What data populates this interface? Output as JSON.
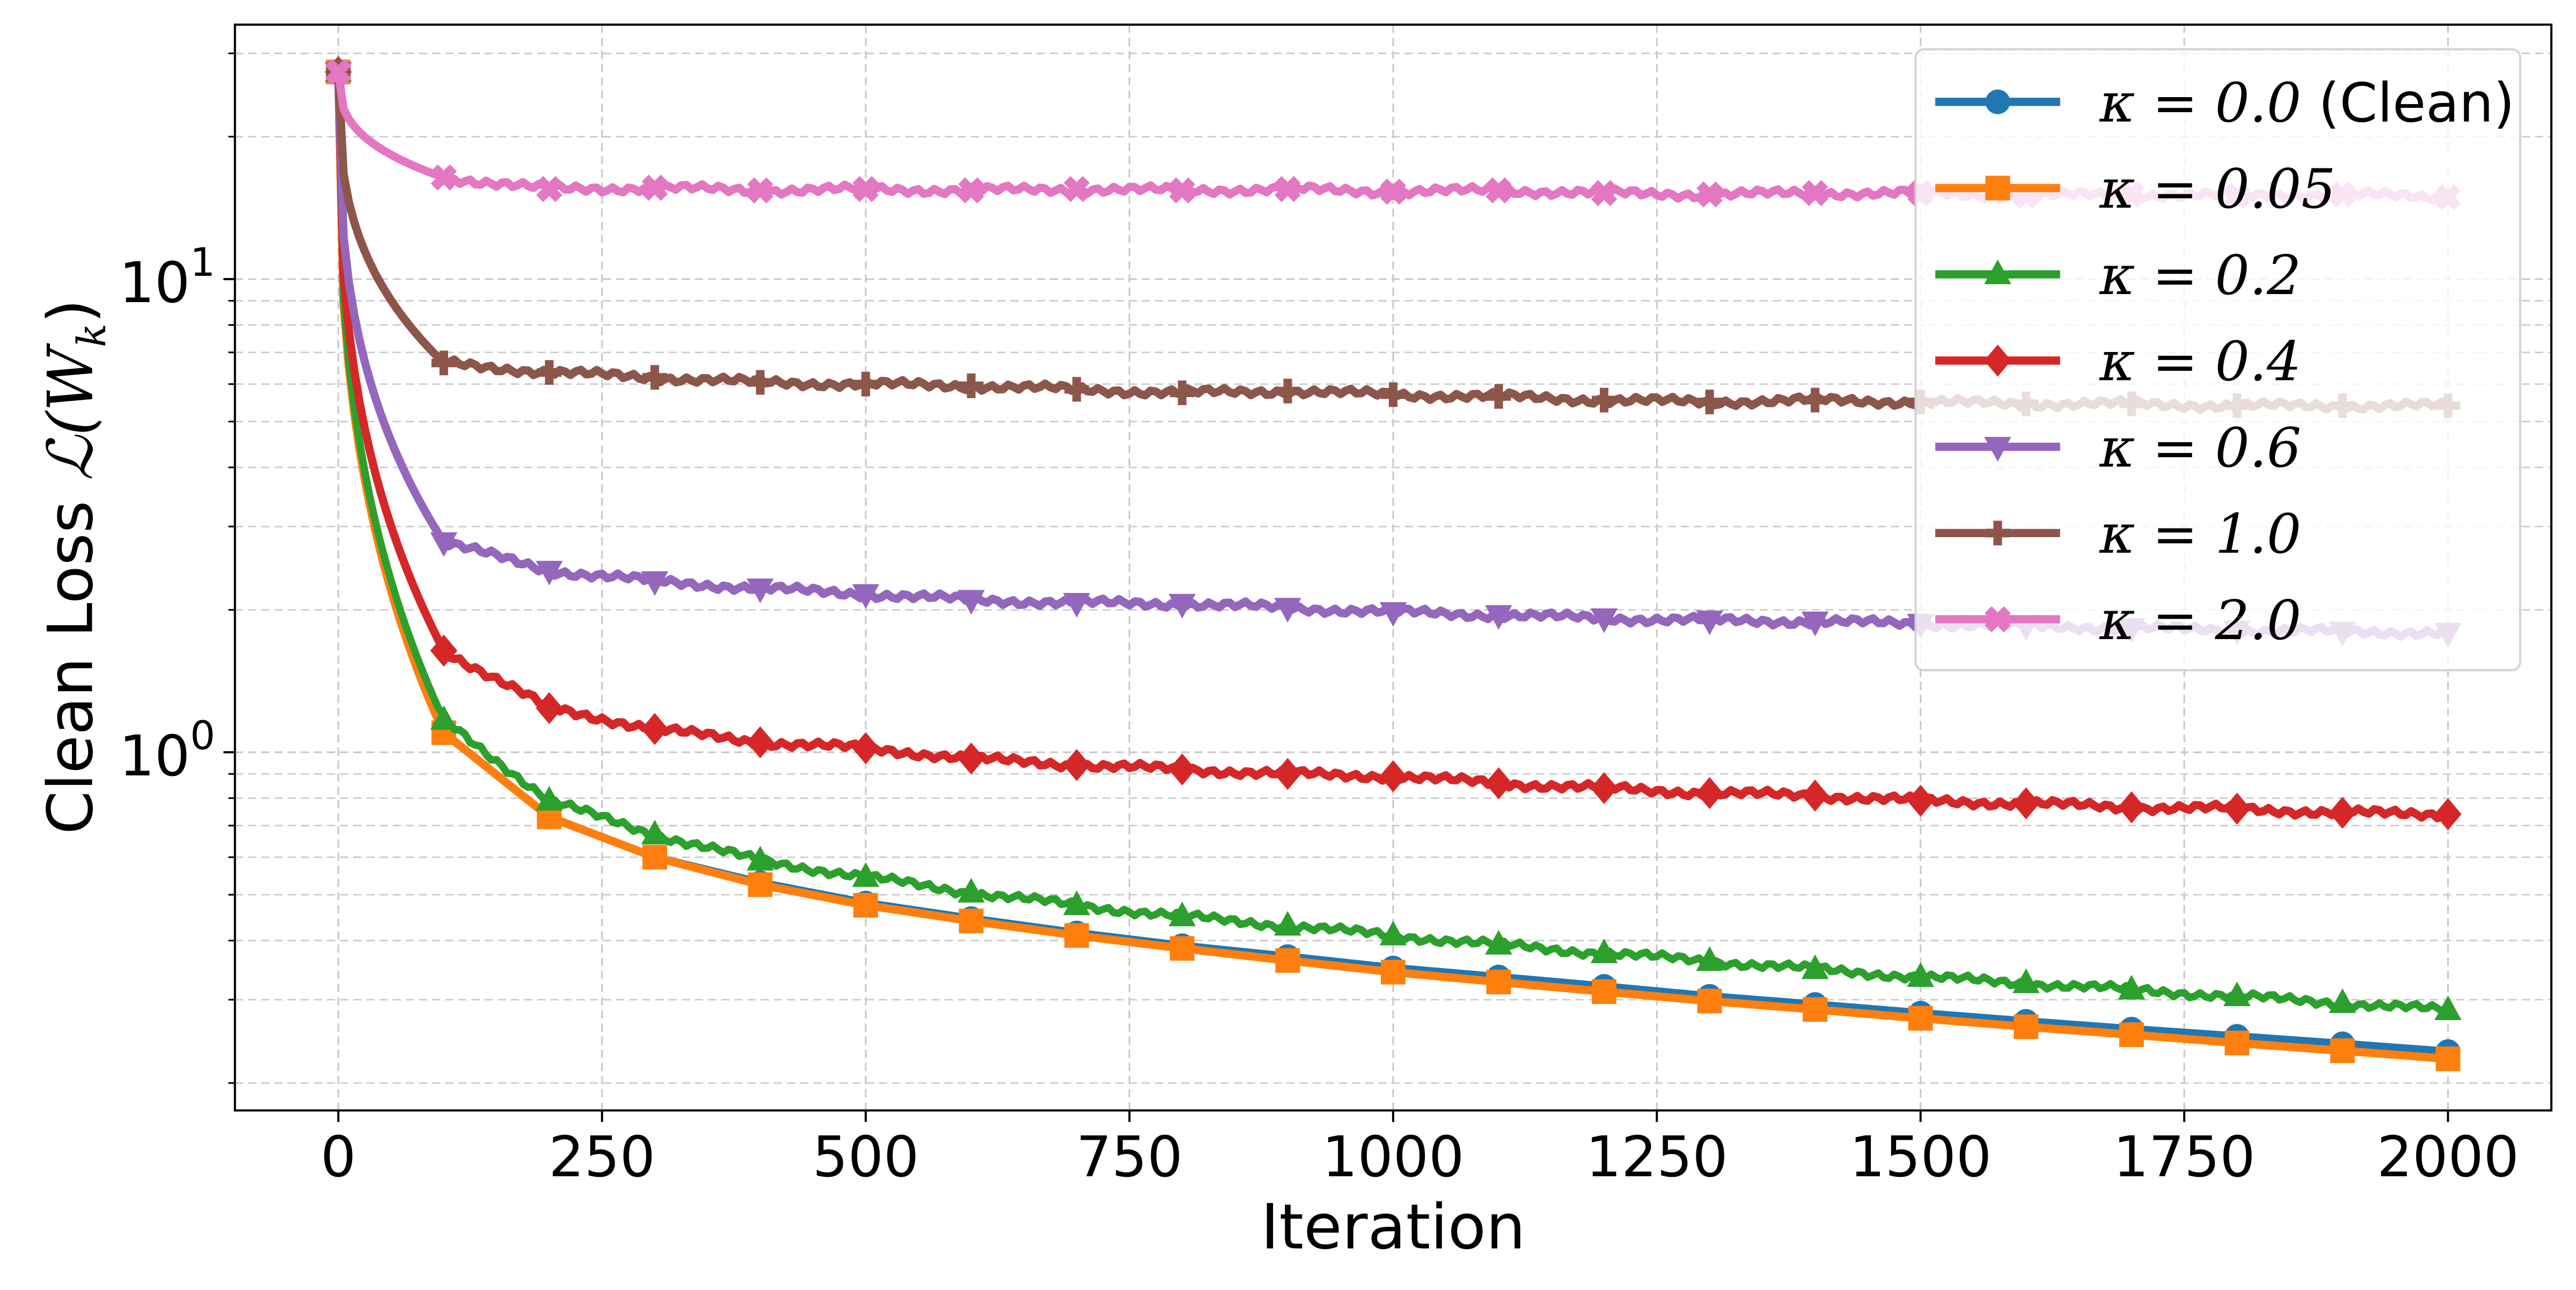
{
  "chart_data": {
    "type": "line",
    "title": "",
    "xlabel": "Iteration",
    "ylabel": "Clean Loss 𝓛(𝐖ₖ)",
    "ylabel_parts": {
      "prefix": "Clean Loss ",
      "symbol": "ℒ(W",
      "subscript": "k",
      "suffix": ")"
    },
    "yscale": "log",
    "xlim": [
      -98,
      2098
    ],
    "ylim": [
      0.175,
      34.5
    ],
    "xticks": [
      0,
      250,
      500,
      750,
      1000,
      1250,
      1500,
      1750,
      2000
    ],
    "xtick_labels": [
      "0",
      "250",
      "500",
      "750",
      "1000",
      "1250",
      "1500",
      "1750",
      "2000"
    ],
    "yticks_major": [
      1,
      10
    ],
    "ytick_labels": [
      {
        "base": "10",
        "exp": "0"
      },
      {
        "base": "10",
        "exp": "1"
      }
    ],
    "yticks_minor": [
      0.2,
      0.3,
      0.4,
      0.5,
      0.6,
      0.7,
      0.8,
      0.9,
      2,
      3,
      4,
      5,
      6,
      7,
      8,
      9,
      20,
      30
    ],
    "grid": true,
    "legend_position": "upper right",
    "x": [
      0,
      100,
      200,
      300,
      400,
      500,
      600,
      700,
      800,
      900,
      1000,
      1100,
      1200,
      1300,
      1400,
      1500,
      1600,
      1700,
      1800,
      1900,
      2000
    ],
    "series": [
      {
        "name": "κ = 0.0 (Clean)",
        "label_kappa": "κ = 0.0",
        "label_suffix": " (Clean)",
        "color": "#1f77b4",
        "marker": "circle",
        "values": [
          27.4,
          1.1,
          0.73,
          0.6,
          0.53,
          0.48,
          0.445,
          0.415,
          0.39,
          0.37,
          0.35,
          0.335,
          0.32,
          0.305,
          0.293,
          0.281,
          0.27,
          0.26,
          0.251,
          0.242,
          0.233
        ]
      },
      {
        "name": "κ = 0.05",
        "label_kappa": "κ = 0.05",
        "label_suffix": "",
        "color": "#ff7f0e",
        "marker": "square",
        "values": [
          27.4,
          1.1,
          0.73,
          0.6,
          0.525,
          0.475,
          0.44,
          0.41,
          0.385,
          0.363,
          0.343,
          0.327,
          0.312,
          0.298,
          0.286,
          0.274,
          0.263,
          0.253,
          0.243,
          0.234,
          0.225
        ]
      },
      {
        "name": "κ = 0.2",
        "label_kappa": "κ = 0.2",
        "label_suffix": "",
        "color": "#2ca02c",
        "marker": "triangle-up",
        "values": [
          27.4,
          1.17,
          0.79,
          0.67,
          0.59,
          0.545,
          0.505,
          0.475,
          0.45,
          0.43,
          0.41,
          0.392,
          0.376,
          0.362,
          0.348,
          0.335,
          0.325,
          0.315,
          0.305,
          0.295,
          0.285
        ]
      },
      {
        "name": "κ = 0.4",
        "label_kappa": "κ = 0.4",
        "label_suffix": "",
        "color": "#d62728",
        "marker": "diamond",
        "values": [
          27.4,
          1.64,
          1.24,
          1.12,
          1.05,
          1.02,
          0.97,
          0.94,
          0.92,
          0.9,
          0.89,
          0.86,
          0.84,
          0.82,
          0.81,
          0.79,
          0.78,
          0.765,
          0.76,
          0.745,
          0.74
        ]
      },
      {
        "name": "κ = 0.6",
        "label_kappa": "κ = 0.6",
        "label_suffix": "",
        "color": "#9467bd",
        "marker": "triangle-down",
        "values": [
          27.4,
          2.78,
          2.42,
          2.3,
          2.22,
          2.16,
          2.1,
          2.07,
          2.06,
          2.02,
          1.98,
          1.95,
          1.92,
          1.9,
          1.89,
          1.87,
          1.85,
          1.83,
          1.81,
          1.8,
          1.79
        ]
      },
      {
        "name": "κ = 1.0",
        "label_kappa": "κ = 1.0",
        "label_suffix": "",
        "color": "#8c564b",
        "marker": "plus",
        "values": [
          27.4,
          6.65,
          6.35,
          6.2,
          6.05,
          6.0,
          5.95,
          5.85,
          5.75,
          5.8,
          5.7,
          5.65,
          5.55,
          5.5,
          5.55,
          5.5,
          5.45,
          5.45,
          5.4,
          5.4,
          5.4
        ]
      },
      {
        "name": "κ = 2.0",
        "label_kappa": "κ = 2.0",
        "label_suffix": "",
        "color": "#e377c2",
        "marker": "x",
        "values": [
          27.4,
          16.4,
          15.5,
          15.6,
          15.4,
          15.5,
          15.4,
          15.5,
          15.4,
          15.5,
          15.3,
          15.4,
          15.2,
          15.1,
          15.2,
          15.2,
          15.0,
          15.1,
          15.0,
          15.1,
          14.9
        ]
      }
    ]
  }
}
